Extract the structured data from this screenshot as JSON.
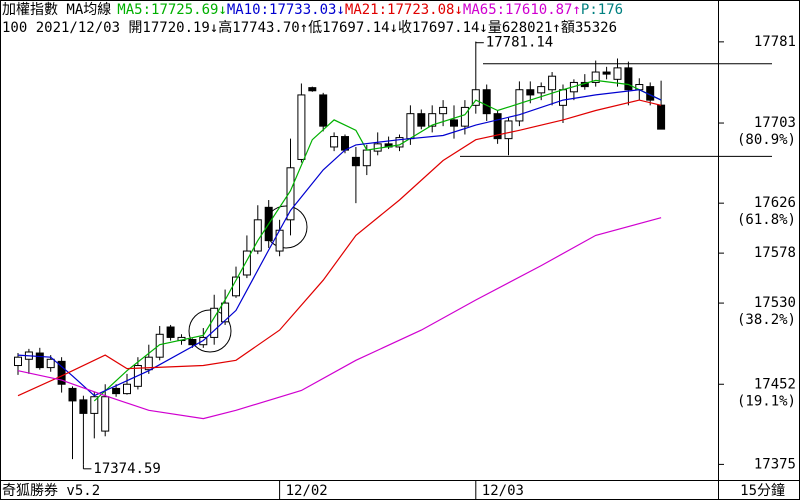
{
  "chart_data": {
    "type": "candlestick",
    "title": "加權指數 MA均線",
    "series": [
      {
        "name": "MA5:17725.69↓",
        "color": "#00b000",
        "x": [
          7,
          10,
          13,
          17,
          19,
          22,
          25,
          27,
          29,
          31,
          32,
          35,
          38,
          41,
          42,
          44,
          47,
          50,
          53,
          56,
          59
        ],
        "values": [
          17436,
          17465,
          17490,
          17499,
          17533,
          17590,
          17638,
          17687,
          17706,
          17696,
          17677,
          17682,
          17701,
          17711,
          17725,
          17715,
          17725,
          17735,
          17744,
          17740,
          17725
        ]
      },
      {
        "name": "MA10:17733.03↓",
        "color": "#0000d0",
        "x": [
          0,
          3,
          5,
          7,
          12,
          17,
          20,
          23,
          25,
          28,
          30,
          31,
          35,
          39,
          42,
          46,
          50,
          53,
          57,
          59
        ],
        "values": [
          17480,
          17478,
          17460,
          17441,
          17465,
          17494,
          17523,
          17581,
          17619,
          17658,
          17677,
          17682,
          17687,
          17691,
          17701,
          17711,
          17725,
          17730,
          17735,
          17725
        ]
      },
      {
        "name": "MA21:17723.08↓",
        "color": "#e00000",
        "x": [
          0,
          4,
          8,
          10,
          17,
          20,
          24,
          28,
          31,
          35,
          39,
          42,
          46,
          50,
          53,
          57,
          59
        ],
        "values": [
          17441,
          17460,
          17480,
          17467,
          17470,
          17475,
          17504,
          17552,
          17595,
          17629,
          17667,
          17687,
          17696,
          17706,
          17715,
          17725,
          17720
        ]
      },
      {
        "name": "MA65:17610.87↑",
        "color": "#d000d0",
        "x": [
          0,
          4,
          8,
          12,
          17,
          20,
          26,
          31,
          37,
          42,
          48,
          53,
          59
        ],
        "values": [
          17465,
          17456,
          17441,
          17427,
          17419,
          17427,
          17446,
          17475,
          17504,
          17533,
          17566,
          17595,
          17612
        ]
      }
    ],
    "extra_legend": "P:176",
    "info": "100 2021/12/03 開17720.19↓高17743.70↑低17697.14↓收17697.14↓量628021↑額35326",
    "open": [
      17470,
      17476,
      17482,
      17468,
      17474,
      17448,
      17437,
      17424,
      17407,
      17448,
      17443,
      17450,
      17466,
      17478,
      17507,
      17494,
      17495,
      17490,
      17497,
      17512,
      17537,
      17557,
      17580,
      17622,
      17580,
      17610,
      17668,
      17737,
      17730,
      17680,
      17690,
      17670,
      17662,
      17676,
      17683,
      17680,
      17688,
      17712,
      17700,
      17712,
      17706,
      17700,
      17720,
      17735,
      17712,
      17688,
      17705,
      17735,
      17732,
      17735,
      17720,
      17733,
      17742,
      17742,
      17752,
      17745,
      17756,
      17735,
      17738,
      17720.19
    ],
    "high": [
      17482,
      17486,
      17487,
      17480,
      17478,
      17450,
      17441,
      17445,
      17452,
      17452,
      17462,
      17478,
      17490,
      17508,
      17509,
      17500,
      17496,
      17506,
      17538,
      17543,
      17565,
      17595,
      17624,
      17629,
      17610,
      17688,
      17741,
      17738,
      17732,
      17694,
      17692,
      17680,
      17682,
      17694,
      17690,
      17692,
      17720,
      17716,
      17720,
      17725,
      17720,
      17725,
      17781.14,
      17740,
      17715,
      17708,
      17743,
      17743,
      17742,
      17752,
      17740,
      17745,
      17750,
      17763,
      17757,
      17765,
      17762,
      17746,
      17742,
      17743.7
    ],
    "low": [
      17461,
      17462,
      17466,
      17464,
      17444,
      17380,
      17374.59,
      17400,
      17402,
      17440,
      17442,
      17447,
      17462,
      17475,
      17494,
      17490,
      17487,
      17487,
      17490,
      17509,
      17535,
      17554,
      17577,
      17583,
      17575,
      17595,
      17665,
      17733,
      17695,
      17676,
      17674,
      17626,
      17653,
      17672,
      17678,
      17676,
      17682,
      17697,
      17694,
      17700,
      17688,
      17692,
      17712,
      17705,
      17683,
      17672,
      17700,
      17722,
      17725,
      17720,
      17703,
      17725,
      17735,
      17738,
      17745,
      17738,
      17720,
      17725,
      17720,
      17697.14
    ],
    "close": [
      17478,
      17483,
      17468,
      17476,
      17452,
      17436,
      17424,
      17440,
      17440,
      17443,
      17452,
      17470,
      17478,
      17500,
      17497,
      17497,
      17490,
      17497,
      17525,
      17530,
      17555,
      17580,
      17610,
      17590,
      17600,
      17660,
      17730,
      17734,
      17700,
      17690,
      17677,
      17662,
      17677,
      17683,
      17680,
      17689,
      17712,
      17700,
      17712,
      17718,
      17700,
      17718,
      17735,
      17712,
      17688,
      17705,
      17735,
      17730,
      17738,
      17748,
      17735,
      17742,
      17738,
      17752,
      17750,
      17756,
      17735,
      17740,
      17725,
      17697.14
    ],
    "ylim": [
      17360,
      17802
    ],
    "yticks": [
      17781,
      17703,
      17626,
      17578,
      17530,
      17452,
      17375
    ],
    "fib_labels": [
      {
        "value": 17703,
        "label": "(80.9%)"
      },
      {
        "value": 17626,
        "label": "(61.8%)"
      },
      {
        "value": 17530,
        "label": "(38.2%)"
      },
      {
        "value": 17452,
        "label": "(19.1%)"
      }
    ],
    "xticks": [
      {
        "value": 24,
        "label": "12/02"
      },
      {
        "value": 42,
        "label": "12/03"
      }
    ],
    "annotations": [
      {
        "x": 42,
        "y": 17781.14
      },
      {
        "x": 6,
        "y": 17374.59
      }
    ],
    "hlines": [
      17760,
      17671
    ],
    "up_color": "#ffffff",
    "down_color": "#000000",
    "brand": "奇狐勝券 v5.2",
    "period": "15分鐘"
  }
}
